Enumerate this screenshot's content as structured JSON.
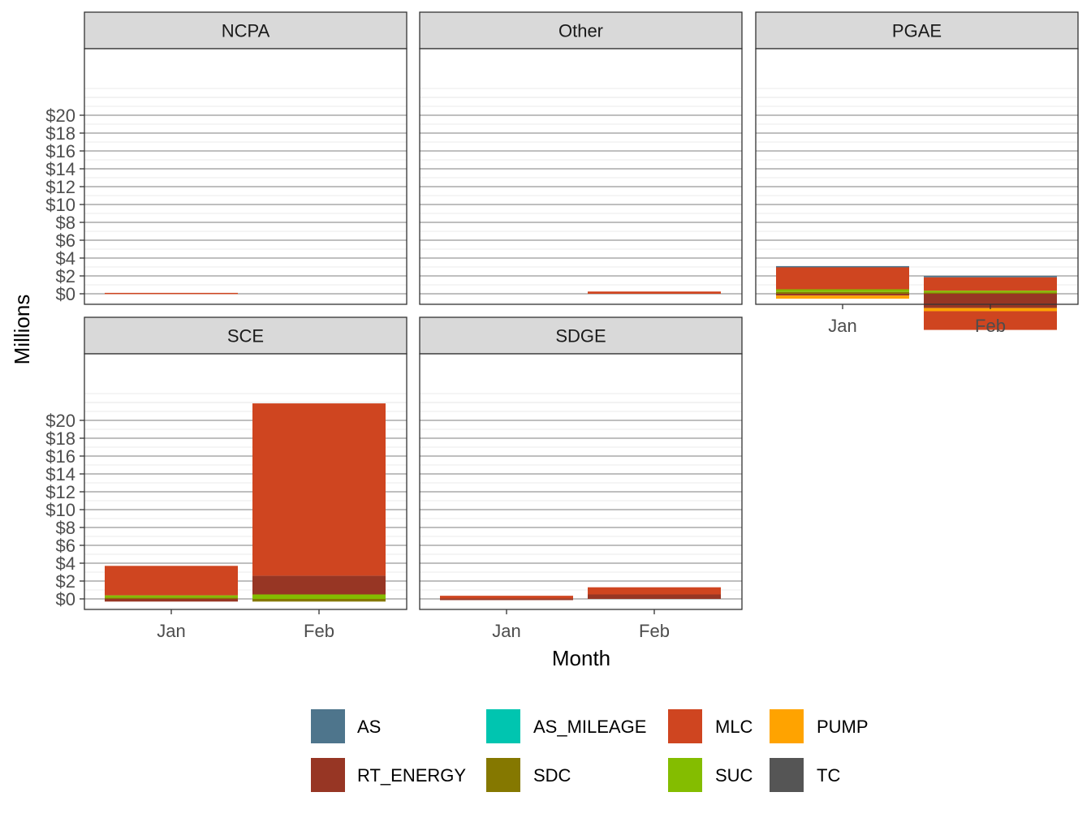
{
  "chart_data": {
    "type": "bar",
    "stacked": true,
    "facet_by": "utility",
    "xlabel": "Month",
    "ylabel": "Millions",
    "categories": [
      "Jan",
      "Feb"
    ],
    "ylim": [
      -4,
      24
    ],
    "y_ticks": [
      0,
      2,
      4,
      6,
      8,
      10,
      12,
      14,
      16,
      18,
      20
    ],
    "y_tick_labels": [
      "$0",
      "$2",
      "$4",
      "$6",
      "$8",
      "$10",
      "$12",
      "$14",
      "$16",
      "$18",
      "$20"
    ],
    "grid": true,
    "legend_position": "bottom",
    "legend": [
      {
        "name": "AS",
        "color": "#4e758c"
      },
      {
        "name": "AS_MILEAGE",
        "color": "#00c5b0"
      },
      {
        "name": "MLC",
        "color": "#cf4520"
      },
      {
        "name": "PUMP",
        "color": "#ffa300"
      },
      {
        "name": "RT_ENERGY",
        "color": "#973624"
      },
      {
        "name": "SDC",
        "color": "#857800"
      },
      {
        "name": "SUC",
        "color": "#84bd00"
      },
      {
        "name": "TC",
        "color": "#555555"
      }
    ],
    "facets": [
      {
        "name": "NCPA",
        "bars": {
          "Jan": [
            {
              "series": "MLC",
              "value": 0.1
            }
          ],
          "Feb": []
        }
      },
      {
        "name": "Other",
        "bars": {
          "Jan": [],
          "Feb": [
            {
              "series": "MLC",
              "value": 0.25
            }
          ]
        }
      },
      {
        "name": "PGAE",
        "bars": {
          "Jan": [
            {
              "series": "SDC",
              "value": 0.2
            },
            {
              "series": "SUC",
              "value": 0.3
            },
            {
              "series": "MLC",
              "value": 2.5
            },
            {
              "series": "AS",
              "value": 0.1
            },
            {
              "series": "RT_ENERGY",
              "value": -0.2
            },
            {
              "series": "PUMP",
              "value": -0.35
            }
          ],
          "Feb": [
            {
              "series": "SDC",
              "value": 0.15
            },
            {
              "series": "SUC",
              "value": 0.2
            },
            {
              "series": "MLC",
              "value": 1.5
            },
            {
              "series": "AS",
              "value": 0.15
            },
            {
              "series": "RT_ENERGY",
              "value": -1.6
            },
            {
              "series": "PUMP",
              "value": -0.35
            },
            {
              "series": "MLC",
              "value": -2.1
            }
          ]
        }
      },
      {
        "name": "SCE",
        "bars": {
          "Jan": [
            {
              "series": "SDC",
              "value": 0.15
            },
            {
              "series": "SUC",
              "value": 0.25
            },
            {
              "series": "MLC",
              "value": 3.3
            },
            {
              "series": "RT_ENERGY",
              "value": -0.3
            }
          ],
          "Feb": [
            {
              "series": "SUC",
              "value": 0.5
            },
            {
              "series": "RT_ENERGY",
              "value": 2.1
            },
            {
              "series": "MLC",
              "value": 19.3
            },
            {
              "series": "SDC",
              "value": -0.3
            }
          ]
        }
      },
      {
        "name": "SDGE",
        "bars": {
          "Jan": [
            {
              "series": "RT_ENERGY",
              "value": 0.05
            },
            {
              "series": "MLC",
              "value": 0.3
            },
            {
              "series": "RT_ENERGY",
              "value": -0.1
            }
          ],
          "Feb": [
            {
              "series": "RT_ENERGY",
              "value": 0.5
            },
            {
              "series": "MLC",
              "value": 0.8
            }
          ]
        }
      }
    ]
  }
}
